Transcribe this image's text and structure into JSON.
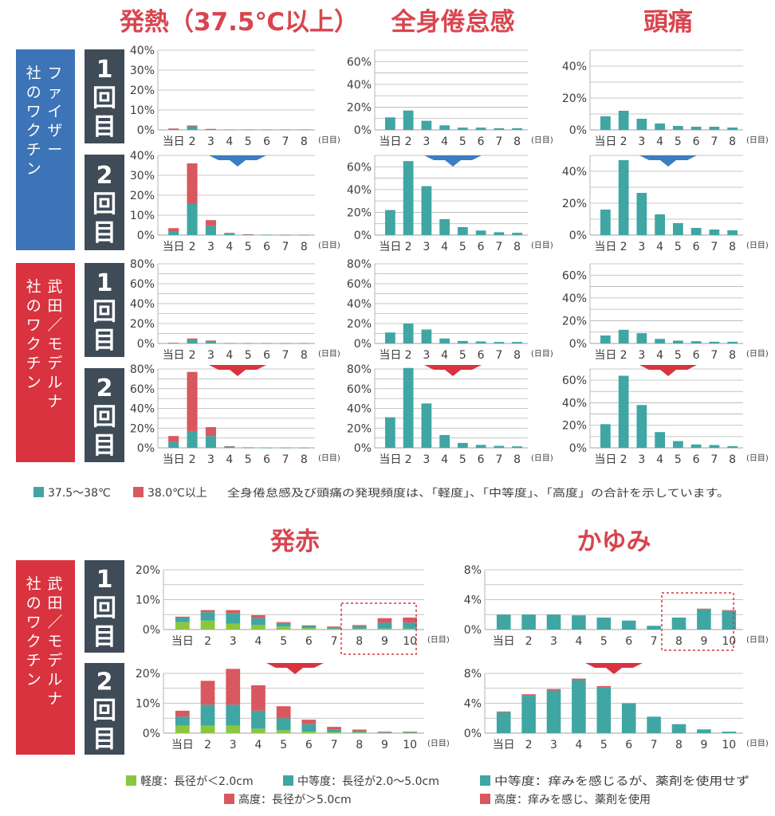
{
  "colors": {
    "title": "#d8454f",
    "teal": "#3fa6a4",
    "red": "#d9585f",
    "green": "#8cc63f",
    "blue_bar": "#3c74b7",
    "red_bar": "#d9333f",
    "slate": "#3f4b57",
    "grid": "#b5b5b5",
    "arrow_blue": "#3a7ec4",
    "arrow_red": "#d9333f"
  },
  "titles": {
    "fever": "発熱（37.5℃以上）",
    "fatigue": "全身倦怠感",
    "headache": "頭痛",
    "redness": "発赤",
    "itch": "かゆみ"
  },
  "side_labels": {
    "pfizer": "ファイザー社のワクチン",
    "moderna": "武田／モデルナ社のワクチン",
    "moderna2": "武田／モデルナ社のワクチン"
  },
  "dose_labels": {
    "first": "1回目",
    "second": "2回目"
  },
  "axis_unit": "(日目)",
  "legends": {
    "fever_low": "37.5〜38℃",
    "fever_high": "38.0℃以上",
    "note": "全身倦怠感及び頭痛の発現頻度は、「軽度」、「中等度」、「高度」の合計を示しています。",
    "mild_size": "軽度：長径が＜2.0cm",
    "moderate_size": "中等度：長径が2.0〜5.0cm",
    "moderate_itch": "中等度：痒みを感じるが、薬剤を使用せず",
    "severe_size": "高度：長径が＞5.0cm",
    "severe_itch": "高度：痒みを感じ、薬剤を使用"
  },
  "chart_data": [
    {
      "type": "bar",
      "title": "発熱（37.5℃以上）",
      "group": "ファイザー社のワクチン",
      "dose": "1回目",
      "categories": [
        "当日",
        "2",
        "3",
        "4",
        "5",
        "6",
        "7",
        "8"
      ],
      "ylim": [
        0,
        40
      ],
      "yticks": [
        0,
        10,
        20,
        30,
        40
      ],
      "series": [
        {
          "name": "37.5〜38℃",
          "values": [
            0.6,
            1.8,
            0.4,
            0.2,
            0.2,
            0.2,
            0.2,
            0.2
          ]
        },
        {
          "name": "38.0℃以上",
          "values": [
            0.1,
            0.4,
            0.1,
            0,
            0,
            0,
            0,
            0
          ]
        }
      ]
    },
    {
      "type": "bar",
      "title": "全身倦怠感",
      "group": "ファイザー社のワクチン",
      "dose": "1回目",
      "categories": [
        "当日",
        "2",
        "3",
        "4",
        "5",
        "6",
        "7",
        "8"
      ],
      "ylim": [
        0,
        70
      ],
      "yticks": [
        0,
        20,
        40,
        60
      ],
      "values": [
        11,
        17,
        8,
        4,
        2,
        2,
        1.5,
        1.5
      ]
    },
    {
      "type": "bar",
      "title": "頭痛",
      "group": "ファイザー社のワクチン",
      "dose": "1回目",
      "categories": [
        "当日",
        "2",
        "3",
        "4",
        "5",
        "6",
        "7",
        "8"
      ],
      "ylim": [
        0,
        50
      ],
      "yticks": [
        0,
        20,
        40
      ],
      "values": [
        8.5,
        12,
        7,
        4,
        2.5,
        2,
        2,
        1.5
      ]
    },
    {
      "type": "bar",
      "group": "ファイザー社のワクチン",
      "dose": "2回目",
      "categories": [
        "当日",
        "2",
        "3",
        "4",
        "5",
        "6",
        "7",
        "8"
      ],
      "ylim": [
        0,
        40
      ],
      "yticks": [
        0,
        10,
        20,
        30,
        40
      ],
      "series": [
        {
          "name": "37.5〜38℃",
          "values": [
            2,
            16,
            4.5,
            0.8,
            0.3,
            0.2,
            0.1,
            0.1
          ]
        },
        {
          "name": "38.0℃以上",
          "values": [
            1.5,
            20,
            3,
            0.3,
            0.1,
            0,
            0,
            0
          ]
        }
      ]
    },
    {
      "type": "bar",
      "group": "ファイザー社のワクチン",
      "dose": "2回目",
      "categories": [
        "当日",
        "2",
        "3",
        "4",
        "5",
        "6",
        "7",
        "8"
      ],
      "ylim": [
        0,
        70
      ],
      "yticks": [
        0,
        20,
        40,
        60
      ],
      "values": [
        22,
        65,
        43,
        14,
        7,
        4,
        2.5,
        2
      ]
    },
    {
      "type": "bar",
      "group": "ファイザー社のワクチン",
      "dose": "2回目",
      "categories": [
        "当日",
        "2",
        "3",
        "4",
        "5",
        "6",
        "7",
        "8"
      ],
      "ylim": [
        0,
        50
      ],
      "yticks": [
        0,
        20,
        40
      ],
      "values": [
        16,
        47,
        26.5,
        13,
        7.5,
        4.5,
        3.5,
        3
      ]
    },
    {
      "type": "bar",
      "group": "武田／モデルナ社のワクチン",
      "dose": "1回目",
      "categories": [
        "当日",
        "2",
        "3",
        "4",
        "5",
        "6",
        "7",
        "8"
      ],
      "ylim": [
        0,
        80
      ],
      "yticks": [
        0,
        20,
        40,
        60,
        80
      ],
      "series": [
        {
          "name": "37.5〜38℃",
          "values": [
            0.5,
            3.5,
            2.5,
            0.3,
            0.2,
            0.2,
            0.2,
            0.2
          ]
        },
        {
          "name": "38.0℃以上",
          "values": [
            0.1,
            1.5,
            0.5,
            0,
            0,
            0,
            0,
            0
          ]
        }
      ]
    },
    {
      "type": "bar",
      "group": "武田／モデルナ社のワクチン",
      "dose": "1回目",
      "categories": [
        "当日",
        "2",
        "3",
        "4",
        "5",
        "6",
        "7",
        "8"
      ],
      "ylim": [
        0,
        80
      ],
      "yticks": [
        0,
        20,
        40,
        60,
        80
      ],
      "values": [
        11,
        20,
        14,
        5,
        2.5,
        2,
        1.5,
        1.5
      ]
    },
    {
      "type": "bar",
      "group": "武田／モデルナ社のワクチン",
      "dose": "1回目",
      "categories": [
        "当日",
        "2",
        "3",
        "4",
        "5",
        "6",
        "7",
        "8"
      ],
      "ylim": [
        0,
        70
      ],
      "yticks": [
        0,
        20,
        40,
        60
      ],
      "values": [
        7,
        12,
        9,
        4,
        2.5,
        2,
        1.5,
        1.5
      ]
    },
    {
      "type": "bar",
      "group": "武田／モデルナ社のワクチン",
      "dose": "2回目",
      "categories": [
        "当日",
        "2",
        "3",
        "4",
        "5",
        "6",
        "7",
        "8"
      ],
      "ylim": [
        0,
        80
      ],
      "yticks": [
        0,
        20,
        40,
        60,
        80
      ],
      "series": [
        {
          "name": "37.5〜38℃",
          "values": [
            6,
            17,
            12,
            1.2,
            0.3,
            0.2,
            0.2,
            0.2
          ]
        },
        {
          "name": "38.0℃以上",
          "values": [
            6,
            60,
            9,
            0.5,
            0.1,
            0,
            0,
            0
          ]
        }
      ]
    },
    {
      "type": "bar",
      "group": "武田／モデルナ社のワクチン",
      "dose": "2回目",
      "categories": [
        "当日",
        "2",
        "3",
        "4",
        "5",
        "6",
        "7",
        "8"
      ],
      "ylim": [
        0,
        80
      ],
      "yticks": [
        0,
        20,
        40,
        60,
        80
      ],
      "values": [
        31,
        81,
        45,
        13,
        5,
        3,
        2,
        1.5
      ]
    },
    {
      "type": "bar",
      "group": "武田／モデルナ社のワクチン",
      "dose": "2回目",
      "categories": [
        "当日",
        "2",
        "3",
        "4",
        "5",
        "6",
        "7",
        "8"
      ],
      "ylim": [
        0,
        70
      ],
      "yticks": [
        0,
        20,
        40,
        60
      ],
      "values": [
        21,
        64,
        38,
        14,
        6,
        3,
        2.5,
        1.5
      ]
    },
    {
      "type": "bar",
      "title": "発赤",
      "group": "武田／モデルナ社のワクチン",
      "dose": "1回目",
      "categories": [
        "当日",
        "2",
        "3",
        "4",
        "5",
        "6",
        "7",
        "8",
        "9",
        "10"
      ],
      "ylim": [
        0,
        20
      ],
      "yticks": [
        0,
        10,
        20
      ],
      "series": [
        {
          "name": "軽度：長径が＜2.0cm",
          "values": [
            2.5,
            3,
            2,
            1.5,
            1,
            0.5,
            0.3,
            0.3,
            0.3,
            0.3
          ]
        },
        {
          "name": "中等度：長径が2.0〜5.0cm",
          "values": [
            1.5,
            2.8,
            3.5,
            2.3,
            1.2,
            0.7,
            0.5,
            0.8,
            2,
            2
          ]
        },
        {
          "name": "高度：長径が＞5.0cm",
          "values": [
            0.3,
            0.7,
            1,
            1,
            0.3,
            0.2,
            0.2,
            0.4,
            1.5,
            1.7
          ]
        }
      ]
    },
    {
      "type": "bar",
      "title": "かゆみ",
      "group": "武田／モデルナ社のワクチン",
      "dose": "1回目",
      "categories": [
        "当日",
        "2",
        "3",
        "4",
        "5",
        "6",
        "7",
        "8",
        "9",
        "10"
      ],
      "ylim": [
        0,
        8
      ],
      "yticks": [
        0,
        4,
        8
      ],
      "series": [
        {
          "name": "中等度：痒みを感じるが、薬剤を使用せず",
          "values": [
            2,
            2,
            2,
            1.9,
            1.6,
            1.2,
            0.5,
            1.6,
            2.7,
            2.5
          ]
        },
        {
          "name": "高度：痒みを感じ、薬剤を使用",
          "values": [
            0,
            0,
            0,
            0,
            0,
            0,
            0,
            0,
            0.1,
            0.1
          ]
        }
      ]
    },
    {
      "type": "bar",
      "group": "武田／モデルナ社のワクチン",
      "dose": "2回目",
      "categories": [
        "当日",
        "2",
        "3",
        "4",
        "5",
        "6",
        "7",
        "8",
        "9",
        "10"
      ],
      "ylim": [
        0,
        20
      ],
      "yticks": [
        0,
        10,
        20
      ],
      "series": [
        {
          "name": "軽度：長径が＜2.0cm",
          "values": [
            2.5,
            2.5,
            2.5,
            1.5,
            1,
            0.5,
            0.3,
            0.2,
            0.1,
            0.1
          ]
        },
        {
          "name": "中等度：長径が2.0〜5.0cm",
          "values": [
            3,
            7,
            7,
            6,
            4,
            2.5,
            1,
            0.5,
            0.2,
            0.2
          ]
        },
        {
          "name": "高度：長径が＞5.0cm",
          "values": [
            2,
            8,
            12,
            8.5,
            4,
            1.5,
            0.8,
            0.5,
            0.2,
            0.2
          ]
        }
      ]
    },
    {
      "type": "bar",
      "group": "武田／モデルナ社のワクチン",
      "dose": "2回目",
      "categories": [
        "当日",
        "2",
        "3",
        "4",
        "5",
        "6",
        "7",
        "8",
        "9",
        "10"
      ],
      "ylim": [
        0,
        8
      ],
      "yticks": [
        0,
        4,
        8
      ],
      "series": [
        {
          "name": "中等度：痒みを感じるが、薬剤を使用せず",
          "values": [
            2.8,
            5,
            5.7,
            7.1,
            6.1,
            4,
            2.2,
            1.2,
            0.5,
            0.2
          ]
        },
        {
          "name": "高度：痒みを感じ、薬剤を使用",
          "values": [
            0.1,
            0.2,
            0.2,
            0.2,
            0.2,
            0,
            0,
            0,
            0,
            0
          ]
        }
      ]
    }
  ]
}
